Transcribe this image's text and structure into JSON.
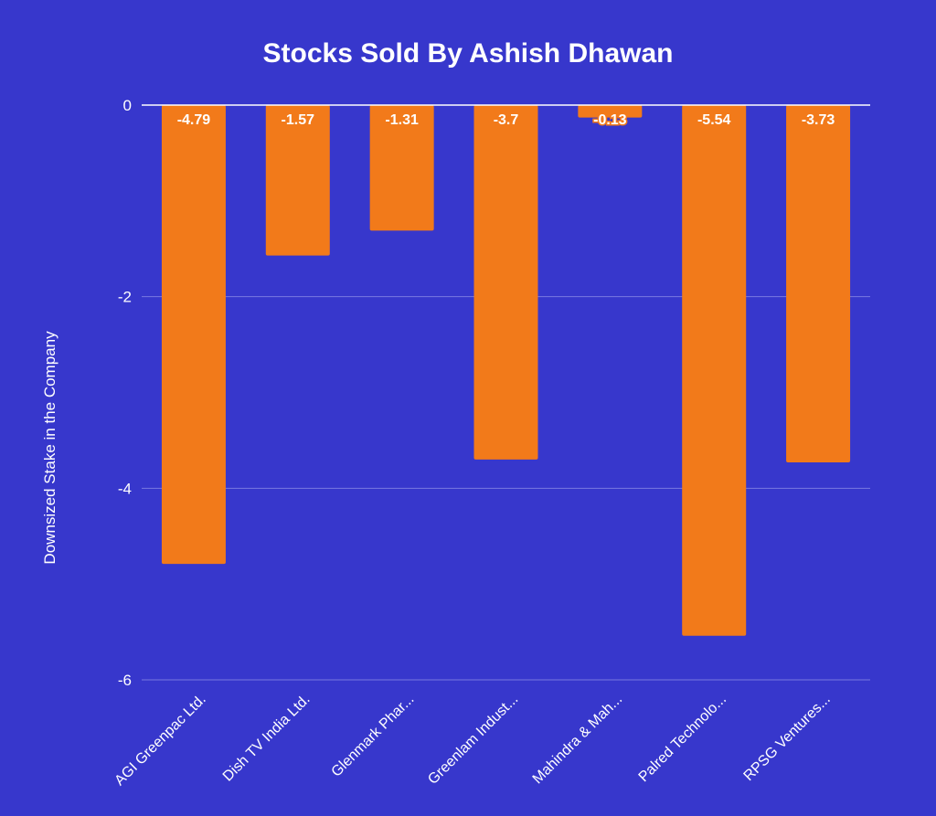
{
  "colors": {
    "background": "#3737cc",
    "bar": "#f27a1a",
    "gridline": "#7a7ae0",
    "zero_line": "#ffffff",
    "text": "#ffffff"
  },
  "chart_data": {
    "type": "bar",
    "title": "Stocks Sold By Ashish Dhawan",
    "xlabel": "",
    "ylabel": "Downsized Stake in the Company",
    "categories": [
      "AGI Greenpac Ltd.",
      "Dish TV India Ltd.",
      "Glenmark Phar...",
      "Greenlam Indust...",
      "Mahindra & Mah...",
      "Palred Technolo...",
      "RPSG Ventures..."
    ],
    "values": [
      -4.79,
      -1.57,
      -1.31,
      -3.7,
      -0.13,
      -5.54,
      -3.73
    ],
    "data_labels": [
      "-4.79",
      "-1.57",
      "-1.31",
      "-3.7",
      "-0.13",
      "-5.54",
      "-3.73"
    ],
    "ylim": [
      -6,
      0
    ],
    "yticks": [
      0,
      -2,
      -4,
      -6
    ],
    "ytick_labels": [
      "0",
      "-2",
      "-4",
      "-6"
    ],
    "grid": true,
    "legend": "none"
  }
}
